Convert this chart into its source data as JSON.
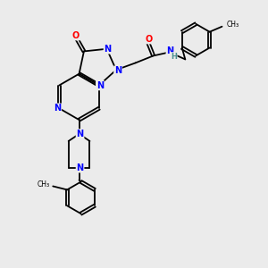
{
  "background_color": "#ebebeb",
  "atom_colors": {
    "N": "#0000ff",
    "O": "#ff0000",
    "C": "#000000",
    "H": "#4a9090",
    "S": "#ffaa00"
  },
  "bond_color": "#000000",
  "lw": 1.3,
  "fs": 7.0,
  "fig_width": 3.0,
  "fig_height": 3.0,
  "dpi": 100
}
